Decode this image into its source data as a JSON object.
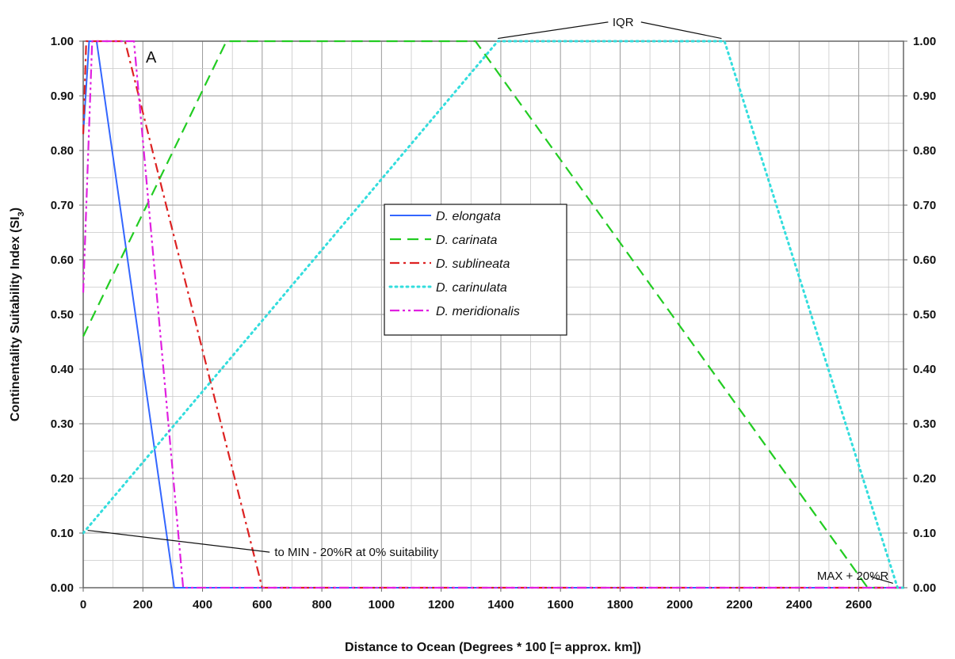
{
  "chart_data": {
    "type": "line",
    "xlabel": "Distance to Ocean (Degrees * 100 [= approx. km])",
    "ylabel_main": "Continentality Suitability Index (SI",
    "ylabel_sub": "3",
    "ylabel_end": ")",
    "xlim": [
      0,
      2750
    ],
    "ylim": [
      0,
      1.0
    ],
    "x_ticks": [
      0,
      200,
      400,
      600,
      800,
      1000,
      1200,
      1400,
      1600,
      1800,
      2000,
      2200,
      2400,
      2600
    ],
    "x_tick_labels": [
      "0",
      "200",
      "400",
      "600",
      "800",
      "1000",
      "1200",
      "1400",
      "1600",
      "1800",
      "2000",
      "2200",
      "2400",
      "2600"
    ],
    "y_ticks": [
      0,
      0.1,
      0.2,
      0.3,
      0.4,
      0.5,
      0.6,
      0.7,
      0.8,
      0.9,
      1.0
    ],
    "y_tick_labels": [
      "0.00",
      "0.10",
      "0.20",
      "0.30",
      "0.40",
      "0.50",
      "0.60",
      "0.70",
      "0.80",
      "0.90",
      "1.00"
    ],
    "grid": true,
    "legend_position": "center",
    "panel_letter": "A",
    "series": [
      {
        "name": "D. elongata",
        "color": "#3366ff",
        "dash": "solid",
        "x": [
          0,
          20,
          45,
          305,
          2750
        ],
        "y": [
          0.83,
          1.0,
          1.0,
          0.0,
          0.0
        ]
      },
      {
        "name": "D. carinata",
        "color": "#22cc22",
        "dash": "dashed",
        "x": [
          0,
          480,
          1315,
          2630,
          2750
        ],
        "y": [
          0.46,
          1.0,
          1.0,
          0.0,
          0.0
        ]
      },
      {
        "name": "D. sublineata",
        "color": "#dd2222",
        "dash": "dashdot",
        "x": [
          0,
          10,
          140,
          600,
          2750
        ],
        "y": [
          0.83,
          1.0,
          1.0,
          0.0,
          0.0
        ]
      },
      {
        "name": "D. carinulata",
        "color": "#33dddd",
        "dash": "dotted",
        "x": [
          0,
          1390,
          2150,
          2730,
          2750
        ],
        "y": [
          0.1,
          1.0,
          1.0,
          0.0,
          0.0
        ]
      },
      {
        "name": "D. meridionalis",
        "color": "#e020e0",
        "dash": "dashdotdot",
        "x": [
          0,
          30,
          170,
          335,
          2750
        ],
        "y": [
          0.54,
          1.0,
          1.0,
          0.0,
          0.0
        ]
      }
    ],
    "annotations": [
      {
        "text": "IQR",
        "x": 1810,
        "y": 1.035
      },
      {
        "text": "to MIN - 20%R at 0% suitability",
        "x": 620,
        "y": 0.065
      },
      {
        "text": "MAX + 20%R",
        "x": 2460,
        "y": 0.022
      }
    ],
    "leader_lines": [
      {
        "name": "iqr-leader-left",
        "x1": 1390,
        "y1": 1.005,
        "x2": 1760,
        "y2": 1.035
      },
      {
        "name": "iqr-leader-right",
        "x1": 2140,
        "y1": 1.005,
        "x2": 1870,
        "y2": 1.035
      },
      {
        "name": "min-leader",
        "x1": 15,
        "y1": 0.105,
        "x2": 625,
        "y2": 0.065
      },
      {
        "name": "max-leader",
        "x1": 2640,
        "y1": 0.02,
        "x2": 2715,
        "y2": 0.008
      }
    ]
  }
}
